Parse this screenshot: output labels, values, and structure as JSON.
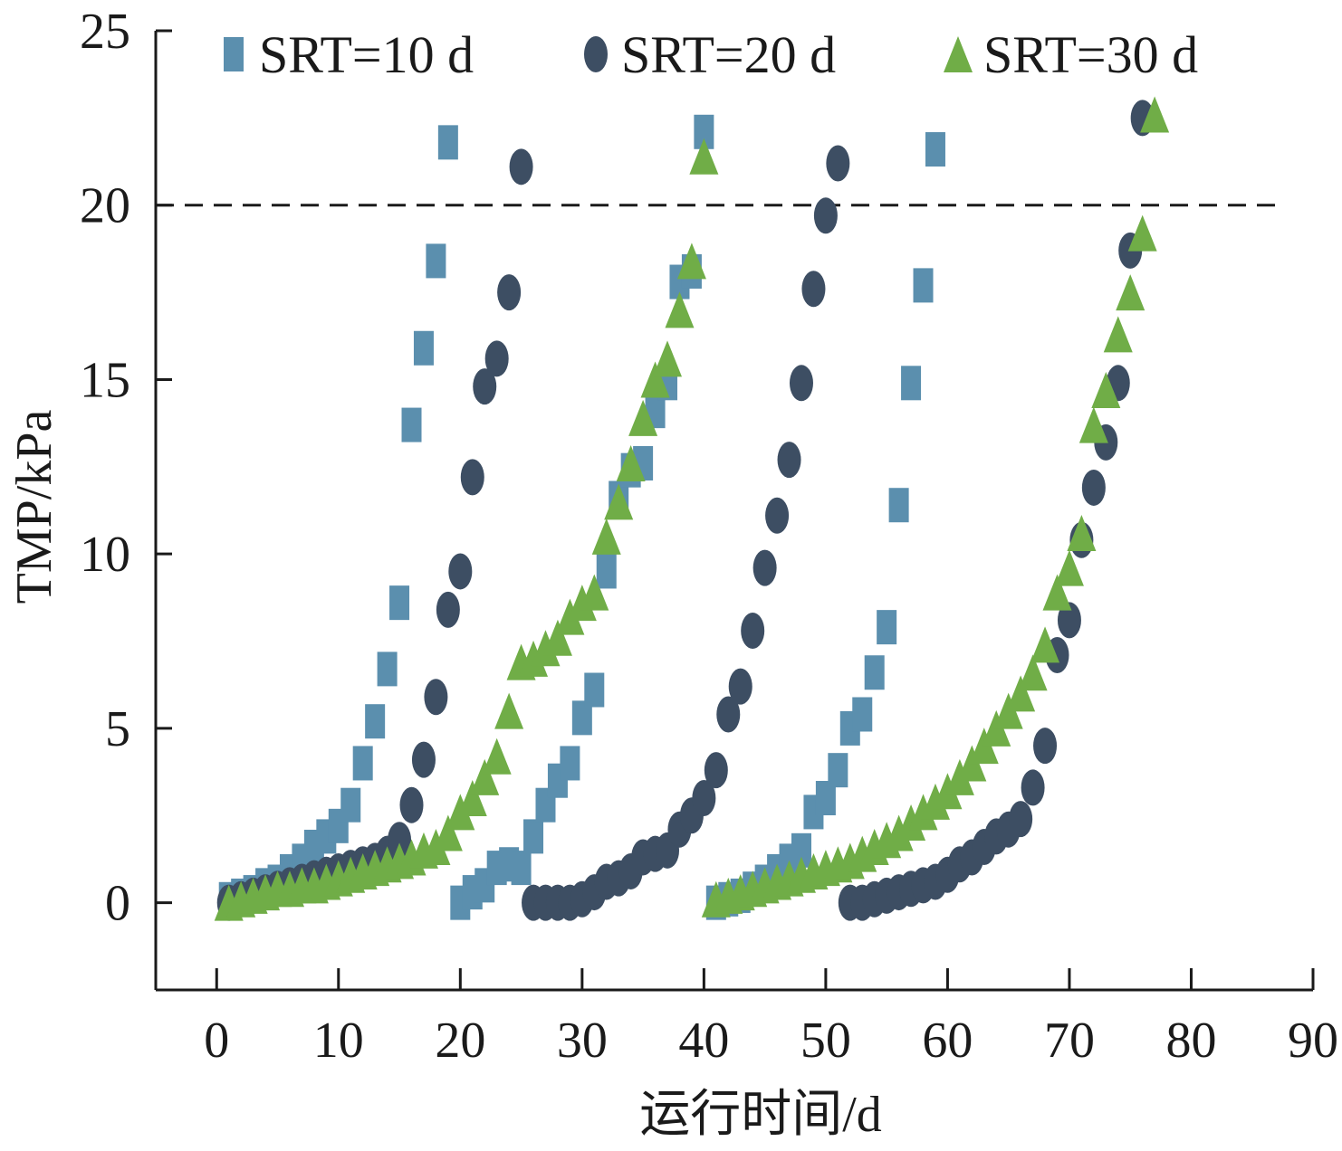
{
  "chart_data": {
    "type": "scatter",
    "title": "",
    "xlabel": "运行时间/d",
    "ylabel": "TMP/kPa",
    "xlim": [
      -5,
      90
    ],
    "ylim": [
      -2.5,
      25
    ],
    "xticks": [
      0,
      10,
      20,
      30,
      40,
      50,
      60,
      70,
      80,
      90
    ],
    "yticks": [
      0,
      5,
      10,
      15,
      20,
      25
    ],
    "grid": false,
    "legend_position": "top",
    "reference_line": {
      "y": 20,
      "style": "dashed"
    },
    "series": [
      {
        "name": "SRT=10 d",
        "marker": "square",
        "color": "#5b8fae",
        "points": [
          [
            1,
            0.1
          ],
          [
            2,
            0.2
          ],
          [
            3,
            0.3
          ],
          [
            4,
            0.5
          ],
          [
            5,
            0.6
          ],
          [
            6,
            0.9
          ],
          [
            7,
            1.2
          ],
          [
            8,
            1.6
          ],
          [
            9,
            1.9
          ],
          [
            10,
            2.2
          ],
          [
            11,
            2.8
          ],
          [
            12,
            4.0
          ],
          [
            13,
            5.2
          ],
          [
            14,
            6.7
          ],
          [
            15,
            8.6
          ],
          [
            16,
            13.7
          ],
          [
            17,
            15.9
          ],
          [
            18,
            18.4
          ],
          [
            19,
            21.8
          ],
          [
            20,
            0.0
          ],
          [
            21,
            0.3
          ],
          [
            22,
            0.5
          ],
          [
            23,
            1.0
          ],
          [
            24,
            1.1
          ],
          [
            25,
            1.0
          ],
          [
            26,
            1.9
          ],
          [
            27,
            2.8
          ],
          [
            28,
            3.5
          ],
          [
            29,
            4.0
          ],
          [
            30,
            5.3
          ],
          [
            31,
            6.1
          ],
          [
            32,
            9.5
          ],
          [
            33,
            11.6
          ],
          [
            34,
            12.4
          ],
          [
            35,
            12.6
          ],
          [
            36,
            14.1
          ],
          [
            37,
            14.9
          ],
          [
            38,
            17.8
          ],
          [
            39,
            18.1
          ],
          [
            40,
            22.1
          ],
          [
            41,
            0.0
          ],
          [
            42,
            0.1
          ],
          [
            43,
            0.2
          ],
          [
            44,
            0.4
          ],
          [
            45,
            0.6
          ],
          [
            46,
            0.9
          ],
          [
            47,
            1.2
          ],
          [
            48,
            1.5
          ],
          [
            49,
            2.6
          ],
          [
            50,
            3.0
          ],
          [
            51,
            3.8
          ],
          [
            52,
            5.0
          ],
          [
            53,
            5.4
          ],
          [
            54,
            6.6
          ],
          [
            55,
            7.9
          ],
          [
            56,
            11.4
          ],
          [
            57,
            14.9
          ],
          [
            58,
            17.7
          ],
          [
            59,
            21.6
          ]
        ]
      },
      {
        "name": "SRT=20 d",
        "marker": "circle",
        "color": "#3d4e63",
        "points": [
          [
            1,
            0.0
          ],
          [
            2,
            0.1
          ],
          [
            3,
            0.2
          ],
          [
            4,
            0.3
          ],
          [
            5,
            0.4
          ],
          [
            6,
            0.5
          ],
          [
            7,
            0.6
          ],
          [
            8,
            0.7
          ],
          [
            9,
            0.8
          ],
          [
            10,
            0.9
          ],
          [
            11,
            1.0
          ],
          [
            12,
            1.1
          ],
          [
            13,
            1.2
          ],
          [
            14,
            1.4
          ],
          [
            15,
            1.8
          ],
          [
            16,
            2.8
          ],
          [
            17,
            4.1
          ],
          [
            18,
            5.9
          ],
          [
            19,
            8.4
          ],
          [
            20,
            9.5
          ],
          [
            21,
            12.2
          ],
          [
            22,
            14.8
          ],
          [
            23,
            15.6
          ],
          [
            24,
            17.5
          ],
          [
            25,
            21.1
          ],
          [
            26,
            0.0
          ],
          [
            27,
            0.0
          ],
          [
            28,
            0.0
          ],
          [
            29,
            0.0
          ],
          [
            30,
            0.1
          ],
          [
            31,
            0.3
          ],
          [
            32,
            0.6
          ],
          [
            33,
            0.7
          ],
          [
            34,
            0.9
          ],
          [
            35,
            1.3
          ],
          [
            36,
            1.4
          ],
          [
            37,
            1.5
          ],
          [
            38,
            2.1
          ],
          [
            39,
            2.5
          ],
          [
            40,
            3.0
          ],
          [
            41,
            3.8
          ],
          [
            42,
            5.4
          ],
          [
            43,
            6.2
          ],
          [
            44,
            7.8
          ],
          [
            45,
            9.6
          ],
          [
            46,
            11.1
          ],
          [
            47,
            12.7
          ],
          [
            48,
            14.9
          ],
          [
            49,
            17.6
          ],
          [
            50,
            19.7
          ],
          [
            51,
            21.2
          ],
          [
            52,
            0.0
          ],
          [
            53,
            0.0
          ],
          [
            54,
            0.1
          ],
          [
            55,
            0.2
          ],
          [
            56,
            0.3
          ],
          [
            57,
            0.4
          ],
          [
            58,
            0.5
          ],
          [
            59,
            0.6
          ],
          [
            60,
            0.8
          ],
          [
            61,
            1.1
          ],
          [
            62,
            1.3
          ],
          [
            63,
            1.6
          ],
          [
            64,
            1.9
          ],
          [
            65,
            2.1
          ],
          [
            66,
            2.4
          ],
          [
            67,
            3.3
          ],
          [
            68,
            4.5
          ],
          [
            69,
            7.1
          ],
          [
            70,
            8.1
          ],
          [
            71,
            10.4
          ],
          [
            72,
            11.9
          ],
          [
            73,
            13.2
          ],
          [
            74,
            14.9
          ],
          [
            75,
            18.7
          ],
          [
            76,
            22.5
          ]
        ]
      },
      {
        "name": "SRT=30 d",
        "marker": "triangle",
        "color": "#70ad47",
        "points": [
          [
            1,
            0.0
          ],
          [
            2,
            0.1
          ],
          [
            3,
            0.2
          ],
          [
            4,
            0.3
          ],
          [
            5,
            0.4
          ],
          [
            6,
            0.4
          ],
          [
            7,
            0.5
          ],
          [
            8,
            0.5
          ],
          [
            9,
            0.6
          ],
          [
            10,
            0.7
          ],
          [
            11,
            0.8
          ],
          [
            12,
            0.9
          ],
          [
            13,
            1.0
          ],
          [
            14,
            1.1
          ],
          [
            15,
            1.2
          ],
          [
            16,
            1.3
          ],
          [
            17,
            1.5
          ],
          [
            18,
            1.6
          ],
          [
            19,
            2.0
          ],
          [
            20,
            2.6
          ],
          [
            21,
            3.0
          ],
          [
            22,
            3.6
          ],
          [
            23,
            4.2
          ],
          [
            24,
            5.5
          ],
          [
            25,
            6.9
          ],
          [
            26,
            7.0
          ],
          [
            27,
            7.3
          ],
          [
            28,
            7.6
          ],
          [
            29,
            8.2
          ],
          [
            30,
            8.6
          ],
          [
            31,
            8.9
          ],
          [
            32,
            10.5
          ],
          [
            33,
            11.5
          ],
          [
            34,
            12.6
          ],
          [
            35,
            13.9
          ],
          [
            36,
            15.0
          ],
          [
            37,
            15.6
          ],
          [
            38,
            17.0
          ],
          [
            39,
            18.4
          ],
          [
            40,
            21.4
          ],
          [
            41,
            0.1
          ],
          [
            42,
            0.2
          ],
          [
            43,
            0.3
          ],
          [
            44,
            0.4
          ],
          [
            45,
            0.5
          ],
          [
            46,
            0.6
          ],
          [
            47,
            0.7
          ],
          [
            48,
            0.8
          ],
          [
            49,
            0.9
          ],
          [
            50,
            1.0
          ],
          [
            51,
            1.1
          ],
          [
            52,
            1.2
          ],
          [
            53,
            1.4
          ],
          [
            54,
            1.6
          ],
          [
            55,
            1.8
          ],
          [
            56,
            2.0
          ],
          [
            57,
            2.3
          ],
          [
            58,
            2.6
          ],
          [
            59,
            2.9
          ],
          [
            60,
            3.2
          ],
          [
            61,
            3.6
          ],
          [
            62,
            4.0
          ],
          [
            63,
            4.5
          ],
          [
            64,
            5.0
          ],
          [
            65,
            5.5
          ],
          [
            66,
            6.0
          ],
          [
            67,
            6.6
          ],
          [
            68,
            7.4
          ],
          [
            69,
            8.9
          ],
          [
            70,
            9.6
          ],
          [
            71,
            10.6
          ],
          [
            72,
            13.7
          ],
          [
            73,
            14.7
          ],
          [
            74,
            16.3
          ],
          [
            75,
            17.5
          ],
          [
            76,
            19.2
          ],
          [
            77,
            22.6
          ]
        ]
      }
    ]
  }
}
